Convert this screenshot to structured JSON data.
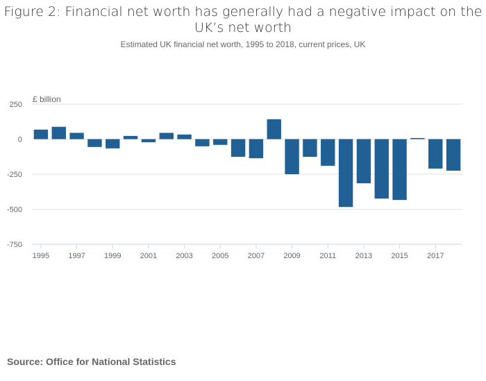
{
  "chart_data": {
    "type": "bar",
    "title": "Figure 2: Financial net worth has generally had a negative impact on the UK’s net worth",
    "subtitle": "Estimated UK financial net worth, 1995 to 2018, current prices, UK",
    "ylabel": "£ billion",
    "xlabel": "",
    "ylim": [
      -750,
      250
    ],
    "yticks": [
      "250",
      "0",
      "-250",
      "-500",
      "-750"
    ],
    "categories": [
      "1995",
      "1996",
      "1997",
      "1998",
      "1999",
      "2000",
      "2001",
      "2002",
      "2003",
      "2004",
      "2005",
      "2006",
      "2007",
      "2008",
      "2009",
      "2010",
      "2011",
      "2012",
      "2013",
      "2014",
      "2015",
      "2016",
      "2017",
      "2018"
    ],
    "xtick_labels": [
      "1995",
      "1997",
      "1999",
      "2001",
      "2003",
      "2005",
      "2007",
      "2009",
      "2011",
      "2013",
      "2015",
      "2017"
    ],
    "values": [
      68,
      88,
      45,
      -56,
      -66,
      23,
      -22,
      45,
      33,
      -51,
      -41,
      -126,
      -136,
      142,
      -250,
      -126,
      -190,
      -484,
      -315,
      -424,
      -434,
      8,
      -210,
      -225
    ],
    "grid": true,
    "bar_color": "#206095"
  },
  "source": "Source: Office for National Statistics"
}
